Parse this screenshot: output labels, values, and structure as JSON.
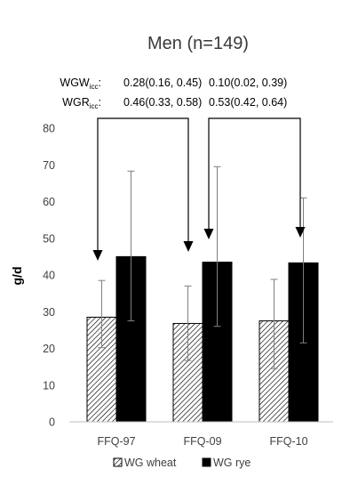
{
  "chart_data": {
    "type": "bar",
    "title": "Men (n=149)",
    "ylabel": "g/d",
    "xlabel": "",
    "ylim": [
      0,
      80
    ],
    "yticks": [
      0,
      10,
      20,
      30,
      40,
      50,
      60,
      70,
      80
    ],
    "categories": [
      "FFQ-97",
      "FFQ-09",
      "FFQ-10"
    ],
    "series": [
      {
        "name": "WG wheat",
        "values": [
          28.5,
          26.8,
          27.5
        ],
        "err_low": [
          20.2,
          16.7,
          14.5
        ],
        "err_high": [
          38.5,
          37.0,
          38.8
        ],
        "fill": "hatch"
      },
      {
        "name": "WG rye",
        "values": [
          45.0,
          43.5,
          43.3
        ],
        "err_low": [
          27.5,
          26.0,
          21.5
        ],
        "err_high": [
          68.3,
          69.5,
          61.0
        ],
        "fill": "#000000"
      }
    ],
    "stats": [
      {
        "label": "WGW",
        "sub": "icc",
        "suffix": ":",
        "values": [
          "0.28(0.16, 0.45)",
          "0.10(0.02, 0.39)"
        ]
      },
      {
        "label": "WGR",
        "sub": "icc",
        "suffix": ":",
        "values": [
          "0.46(0.33, 0.58)",
          "0.53(0.42, 0.64)"
        ]
      }
    ],
    "grid": false,
    "legend": "bottom"
  }
}
